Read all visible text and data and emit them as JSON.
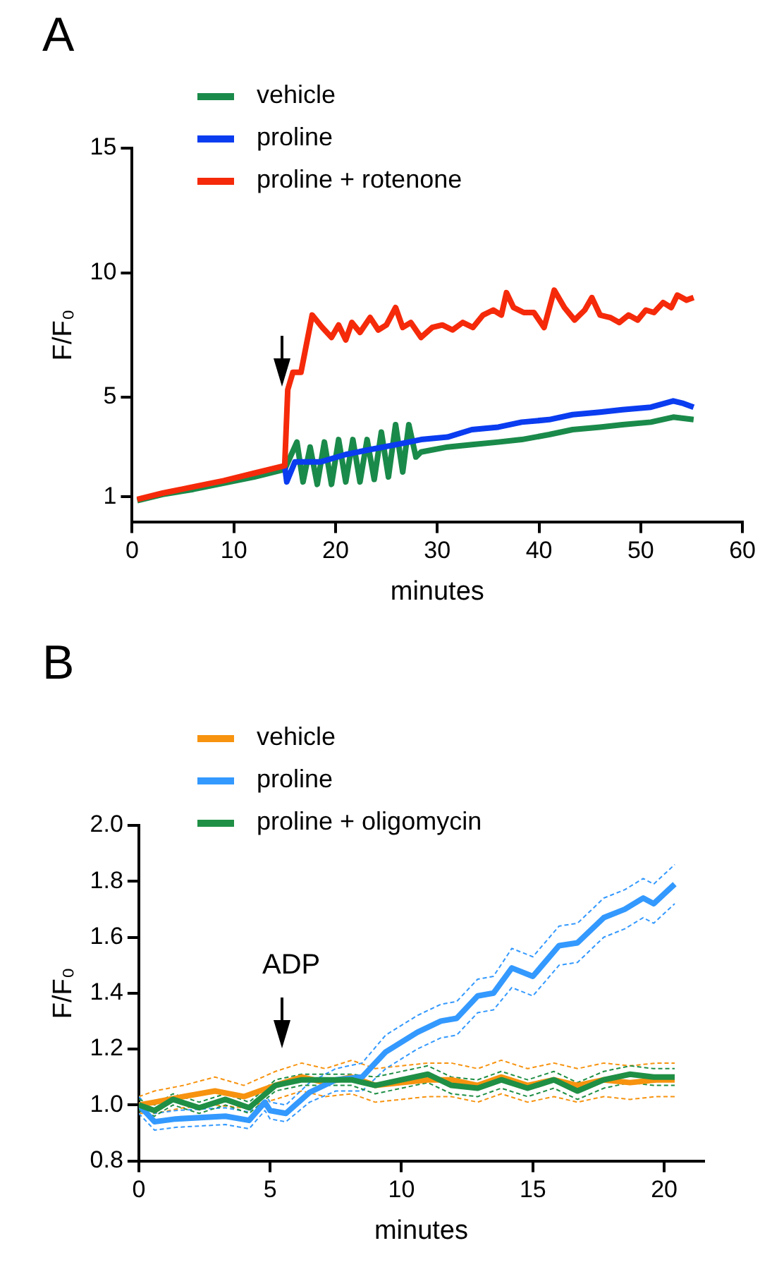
{
  "chart_data": [
    {
      "type": "line",
      "title": "A",
      "xlabel": "minutes",
      "ylabel": "F/F₀",
      "xlim": [
        0,
        60
      ],
      "xticks": [
        0,
        10,
        20,
        30,
        40,
        50,
        60
      ],
      "ylim": [
        0,
        15
      ],
      "yticks": [
        1,
        5,
        10,
        15
      ],
      "grid": false,
      "legend": "top left",
      "marker": "none",
      "series": [
        {
          "name": "vehicle",
          "color": "#1a8a4a",
          "x": [
            0.5,
            3,
            6,
            9,
            12,
            15,
            16.2,
            16.8,
            17.5,
            18.2,
            18.9,
            19.6,
            20.3,
            21,
            21.7,
            22.4,
            23.1,
            23.8,
            24.5,
            25.2,
            25.9,
            26.6,
            27.2,
            27.9,
            28.4,
            31,
            33.4,
            36,
            38.3,
            41,
            43.3,
            46,
            48.2,
            51,
            53.2,
            55.2
          ],
          "values": [
            0.85,
            1.1,
            1.3,
            1.55,
            1.8,
            2.1,
            3.2,
            1.6,
            3.0,
            1.5,
            3.2,
            1.5,
            3.3,
            1.6,
            3.3,
            1.6,
            3.3,
            1.7,
            3.6,
            1.8,
            3.9,
            2.0,
            3.9,
            2.6,
            2.8,
            3.0,
            3.1,
            3.2,
            3.3,
            3.5,
            3.7,
            3.8,
            3.9,
            4.0,
            4.2,
            4.1
          ]
        },
        {
          "name": "proline",
          "color": "#0a3cf0",
          "x": [
            15,
            15.2,
            16,
            18.5,
            21,
            23.4,
            26,
            28.4,
            31,
            33.4,
            36,
            38.3,
            41,
            43.3,
            46,
            48.2,
            51,
            53.2,
            54.2,
            55.2
          ],
          "values": [
            2.25,
            1.6,
            2.4,
            2.4,
            2.7,
            2.9,
            3.1,
            3.3,
            3.4,
            3.7,
            3.8,
            4.0,
            4.1,
            4.3,
            4.4,
            4.5,
            4.6,
            4.85,
            4.75,
            4.6
          ]
        },
        {
          "name": "proline + rotenone",
          "color": "#f52a0a",
          "x": [
            0.5,
            3,
            6,
            9,
            12,
            15,
            15.3,
            15.8,
            16.6,
            17.7,
            18.7,
            19.6,
            20.3,
            21,
            21.6,
            22.4,
            23.4,
            24.2,
            25,
            25.9,
            26.6,
            27.4,
            28.4,
            29.5,
            30.5,
            31.5,
            32.5,
            33.5,
            34.5,
            35.5,
            36.3,
            36.8,
            37.5,
            38.5,
            39.5,
            40.5,
            41.5,
            42.5,
            43.5,
            44.5,
            45.2,
            46,
            47,
            47.9,
            48.8,
            49.7,
            50.5,
            51.3,
            52.2,
            53,
            53.6,
            54.5,
            55.2
          ],
          "values": [
            0.9,
            1.15,
            1.4,
            1.65,
            1.95,
            2.25,
            5.3,
            6.0,
            6.0,
            8.3,
            7.8,
            7.4,
            7.9,
            7.3,
            8.0,
            7.6,
            8.2,
            7.7,
            7.9,
            8.6,
            7.8,
            8.0,
            7.4,
            7.8,
            7.9,
            7.7,
            8.0,
            7.8,
            8.3,
            8.5,
            8.3,
            9.2,
            8.6,
            8.4,
            8.4,
            7.8,
            9.3,
            8.6,
            8.1,
            8.5,
            9.0,
            8.3,
            8.2,
            8.0,
            8.3,
            8.1,
            8.5,
            8.4,
            8.8,
            8.6,
            9.1,
            8.9,
            9.0
          ]
        }
      ]
    },
    {
      "type": "line",
      "title": "B",
      "xlabel": "minutes",
      "ylabel": "F/F₀",
      "xlim": [
        0,
        21.5
      ],
      "xticks": [
        0,
        5,
        10,
        15,
        20
      ],
      "ylim": [
        0.8,
        2.0
      ],
      "yticks": [
        0.8,
        {
          "value": 1.0,
          "label": "1.0"
        },
        1.2,
        1.4,
        1.6,
        1.8,
        {
          "value": 2.0,
          "label": "2.0"
        }
      ],
      "grid": false,
      "legend": "top left",
      "marker": "none",
      "annotations": [
        "ADP"
      ],
      "series": [
        {
          "color": "#f7930f",
          "line_style": "dashed",
          "x": [
            0,
            0.6,
            1.7,
            2.9,
            4.0,
            5.2,
            6.2,
            7.1,
            8.1,
            9.0,
            10.0,
            11.0,
            11.9,
            12.9,
            13.8,
            14.8,
            15.8,
            16.7,
            17.7,
            18.7,
            19.7,
            20.4
          ],
          "values": [
            0.97,
            0.97,
            0.99,
            1.0,
            0.99,
            1.02,
            1.05,
            1.03,
            1.04,
            1.01,
            1.02,
            1.03,
            1.03,
            1.01,
            1.04,
            1.01,
            1.03,
            1.01,
            1.03,
            1.02,
            1.03,
            1.03
          ]
        },
        {
          "color": "#f7930f",
          "line_style": "dashed",
          "x": [
            0,
            0.6,
            1.7,
            2.9,
            4.0,
            5.2,
            6.2,
            7.1,
            8.1,
            9.0,
            10.0,
            11.0,
            11.9,
            12.9,
            13.8,
            14.8,
            15.8,
            16.7,
            17.7,
            18.7,
            19.7,
            20.4
          ],
          "values": [
            1.03,
            1.05,
            1.07,
            1.1,
            1.07,
            1.12,
            1.15,
            1.13,
            1.16,
            1.13,
            1.14,
            1.15,
            1.15,
            1.13,
            1.16,
            1.13,
            1.15,
            1.13,
            1.15,
            1.14,
            1.15,
            1.15
          ]
        },
        {
          "color": "#3399ff",
          "line_style": "dashed",
          "x": [
            0,
            0.6,
            1.4,
            3.3,
            4.2,
            4.8,
            5.0,
            5.6,
            6.5,
            7.5,
            8.5,
            9.4,
            10.6,
            11.5,
            12.1,
            12.9,
            13.5,
            14.2,
            15.0,
            16.0,
            16.7,
            17.7,
            18.5,
            19.2,
            19.6,
            20.4
          ],
          "values": [
            0.97,
            0.91,
            0.92,
            0.93,
            0.915,
            0.98,
            0.95,
            0.94,
            1.01,
            1.05,
            1.05,
            1.13,
            1.2,
            1.24,
            1.25,
            1.33,
            1.34,
            1.42,
            1.39,
            1.5,
            1.51,
            1.6,
            1.63,
            1.67,
            1.65,
            1.72
          ]
        },
        {
          "color": "#3399ff",
          "line_style": "dashed",
          "x": [
            0,
            0.6,
            1.4,
            3.3,
            4.2,
            4.8,
            5.0,
            5.6,
            6.5,
            7.5,
            8.5,
            9.4,
            10.6,
            11.5,
            12.1,
            12.9,
            13.5,
            14.2,
            15.0,
            16.0,
            16.7,
            17.7,
            18.5,
            19.2,
            19.6,
            20.4
          ],
          "values": [
            1.03,
            0.97,
            0.98,
            0.99,
            0.975,
            1.04,
            1.01,
            1.0,
            1.08,
            1.13,
            1.15,
            1.25,
            1.32,
            1.36,
            1.37,
            1.45,
            1.46,
            1.56,
            1.53,
            1.64,
            1.65,
            1.74,
            1.77,
            1.81,
            1.79,
            1.86
          ]
        },
        {
          "color": "#1f8f45",
          "line_style": "dashed",
          "x": [
            0,
            0.6,
            1.3,
            2.3,
            3.3,
            4.2,
            5.2,
            6.2,
            7.1,
            8.1,
            9.0,
            10.0,
            11.0,
            11.9,
            12.9,
            13.8,
            14.8,
            15.8,
            16.7,
            17.7,
            18.7,
            19.6,
            20.4
          ],
          "values": [
            0.98,
            0.96,
            1.0,
            0.97,
            1.0,
            0.97,
            1.05,
            1.07,
            1.07,
            1.07,
            1.04,
            1.06,
            1.08,
            1.04,
            1.03,
            1.06,
            1.03,
            1.06,
            1.02,
            1.06,
            1.08,
            1.07,
            1.07
          ]
        },
        {
          "color": "#1f8f45",
          "line_style": "dashed",
          "x": [
            0,
            0.6,
            1.3,
            2.3,
            3.3,
            4.2,
            5.2,
            6.2,
            7.1,
            8.1,
            9.0,
            10.0,
            11.0,
            11.9,
            12.9,
            13.8,
            14.8,
            15.8,
            16.7,
            17.7,
            18.7,
            19.6,
            20.4
          ],
          "values": [
            1.02,
            1.0,
            1.04,
            1.01,
            1.04,
            1.01,
            1.09,
            1.11,
            1.11,
            1.11,
            1.1,
            1.12,
            1.14,
            1.1,
            1.09,
            1.12,
            1.09,
            1.12,
            1.08,
            1.12,
            1.14,
            1.13,
            1.13
          ]
        },
        {
          "name": "vehicle",
          "color": "#f7930f",
          "x": [
            0,
            0.6,
            1.7,
            2.9,
            4.0,
            5.2,
            6.2,
            7.1,
            8.1,
            9.0,
            10.0,
            11.0,
            11.9,
            12.9,
            13.8,
            14.8,
            15.8,
            16.7,
            17.7,
            18.7,
            19.7,
            20.4
          ],
          "values": [
            1.0,
            1.01,
            1.03,
            1.05,
            1.03,
            1.07,
            1.1,
            1.08,
            1.1,
            1.07,
            1.08,
            1.09,
            1.09,
            1.07,
            1.1,
            1.07,
            1.09,
            1.07,
            1.09,
            1.08,
            1.09,
            1.09
          ]
        },
        {
          "name": "proline",
          "color": "#3399ff",
          "x": [
            0,
            0.6,
            1.4,
            3.3,
            4.2,
            4.8,
            5.0,
            5.6,
            6.5,
            7.5,
            8.5,
            9.4,
            10.6,
            11.5,
            12.1,
            12.9,
            13.5,
            14.2,
            15.0,
            16.0,
            16.7,
            17.7,
            18.5,
            19.2,
            19.6,
            20.4
          ],
          "values": [
            1.0,
            0.94,
            0.95,
            0.96,
            0.945,
            1.01,
            0.98,
            0.97,
            1.045,
            1.09,
            1.1,
            1.19,
            1.26,
            1.3,
            1.31,
            1.39,
            1.4,
            1.49,
            1.46,
            1.57,
            1.58,
            1.67,
            1.7,
            1.74,
            1.72,
            1.79
          ]
        },
        {
          "name": "proline + oligomycin",
          "color": "#1f8f45",
          "x": [
            0,
            0.6,
            1.3,
            2.3,
            3.3,
            4.2,
            5.2,
            6.2,
            7.1,
            8.1,
            9.0,
            10.0,
            11.0,
            11.9,
            12.9,
            13.8,
            14.8,
            15.8,
            16.7,
            17.7,
            18.7,
            19.6,
            20.4
          ],
          "values": [
            1.0,
            0.98,
            1.02,
            0.99,
            1.02,
            0.99,
            1.07,
            1.09,
            1.09,
            1.09,
            1.07,
            1.09,
            1.11,
            1.07,
            1.06,
            1.09,
            1.06,
            1.09,
            1.05,
            1.09,
            1.11,
            1.1,
            1.1
          ]
        }
      ]
    }
  ]
}
